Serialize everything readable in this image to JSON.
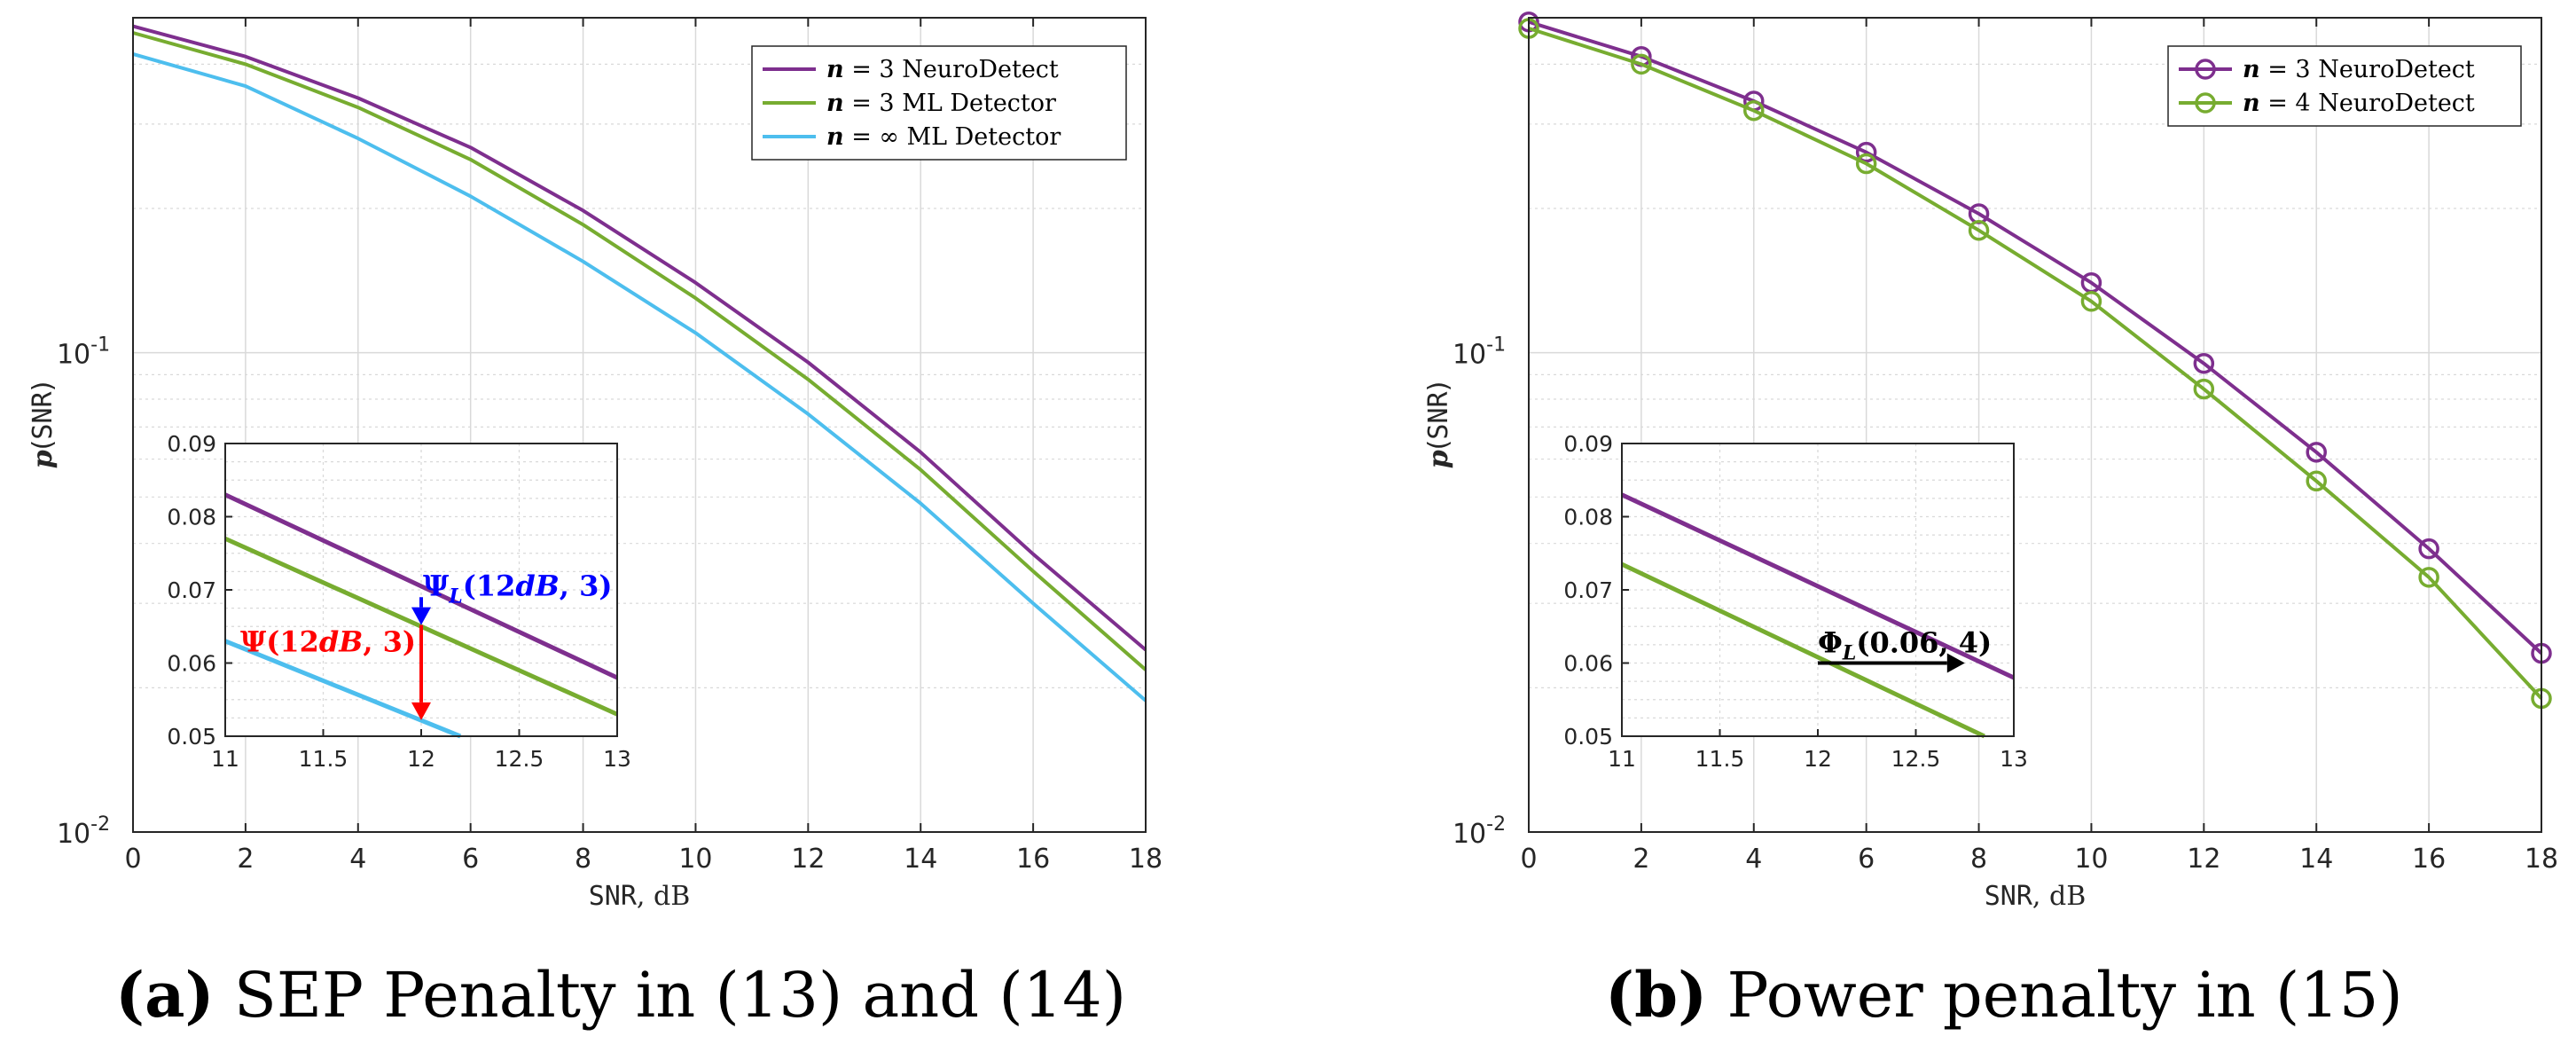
{
  "colors": {
    "purple": "#7e2f8e",
    "green": "#77ac30",
    "blue": "#4dbeee",
    "red": "#ff0000",
    "annBlue": "#0000ff",
    "black": "#000000",
    "grid": "#d9d9d9"
  },
  "captions": [
    {
      "label": "(a)",
      "text": " SEP Penalty in (13) and (14)"
    },
    {
      "label": "(b)",
      "text": " Power penalty in (15)"
    }
  ],
  "chart_data": [
    {
      "type": "line",
      "title": "",
      "xlabel_mono": "SNR",
      "xlabel_rest": ", dB",
      "ylabel_italic": "p",
      "ylabel_mono": "SNR",
      "x": [
        0,
        2,
        4,
        6,
        8,
        10,
        12,
        14,
        16,
        18
      ],
      "xlim": [
        0,
        18
      ],
      "ylim": [
        0.01,
        0.5
      ],
      "yscale": "log",
      "x_ticks": [
        "0",
        "2",
        "4",
        "6",
        "8",
        "10",
        "12",
        "14",
        "16",
        "18"
      ],
      "y_ticks": [
        {
          "base": "10",
          "exp": "-2",
          "value": 0.01
        },
        {
          "base": "10",
          "exp": "-1",
          "value": 0.1
        }
      ],
      "legend_position": "top-right",
      "series": [
        {
          "name": "n = 3 NeuroDetect",
          "n_label": "n",
          "rest": " = 3 NeuroDetect",
          "color": "#7e2f8e",
          "marker": false,
          "values": [
            0.48,
            0.415,
            0.34,
            0.268,
            0.198,
            0.14,
            0.0955,
            0.062,
            0.038,
            0.024
          ]
        },
        {
          "name": "n = 3 ML Detector",
          "n_label": "n",
          "rest": " = 3 ML Detector",
          "color": "#77ac30",
          "marker": false,
          "values": [
            0.465,
            0.4,
            0.325,
            0.253,
            0.185,
            0.13,
            0.088,
            0.057,
            0.035,
            0.0218
          ]
        },
        {
          "name": "n = ∞ ML Detector",
          "n_label": "n",
          "rest": " = ∞ ML Detector",
          "color": "#4dbeee",
          "marker": false,
          "values": [
            0.42,
            0.36,
            0.28,
            0.212,
            0.155,
            0.11,
            0.0745,
            0.0485,
            0.03,
            0.0188
          ]
        }
      ],
      "inset": {
        "xlim": [
          11,
          13
        ],
        "ylim": [
          0.05,
          0.09
        ],
        "x_ticks": [
          "11",
          "11.5",
          "12",
          "12.5",
          "13"
        ],
        "y_ticks": [
          "0.05",
          "0.06",
          "0.07",
          "0.08",
          "0.09"
        ],
        "lines": [
          {
            "color": "#7e2f8e",
            "x": [
              11,
              13
            ],
            "y": [
              0.083,
              0.058
            ]
          },
          {
            "color": "#77ac30",
            "x": [
              11,
              13
            ],
            "y": [
              0.077,
              0.053
            ]
          },
          {
            "color": "#4dbeee",
            "x": [
              11,
              12.2
            ],
            "y": [
              0.063,
              0.05
            ]
          }
        ],
        "annotations": [
          {
            "label": "Ψ_L(12dB, 3)",
            "parts": [
              "Ψ",
              "L",
              "(12",
              "dB",
              ", 3)"
            ],
            "color": "#0000ff",
            "x1": 12,
            "y1": 0.069,
            "x2": 12,
            "y2": 0.0652
          },
          {
            "label": "Ψ(12dB, 3)",
            "parts": [
              "Ψ",
              "",
              "(12",
              "dB",
              ", 3)"
            ],
            "color": "#ff0000",
            "x1": 12,
            "y1": 0.0652,
            "x2": 12,
            "y2": 0.0522
          }
        ]
      }
    },
    {
      "type": "line",
      "title": "",
      "xlabel_mono": "SNR",
      "xlabel_rest": ", dB",
      "ylabel_italic": "p",
      "ylabel_mono": "SNR",
      "x": [
        0,
        2,
        4,
        6,
        8,
        10,
        12,
        14,
        16,
        18
      ],
      "xlim": [
        0,
        18
      ],
      "ylim": [
        0.01,
        0.5
      ],
      "yscale": "log",
      "x_ticks": [
        "0",
        "2",
        "4",
        "6",
        "8",
        "10",
        "12",
        "14",
        "16",
        "18"
      ],
      "y_ticks": [
        {
          "base": "10",
          "exp": "-2",
          "value": 0.01
        },
        {
          "base": "10",
          "exp": "-1",
          "value": 0.1
        }
      ],
      "legend_position": "top-right",
      "series": [
        {
          "name": "n = 3 NeuroDetect",
          "n_label": "n",
          "rest": " = 3 NeuroDetect",
          "color": "#7e2f8e",
          "marker": true,
          "values": [
            0.49,
            0.415,
            0.335,
            0.262,
            0.195,
            0.14,
            0.095,
            0.062,
            0.039,
            0.0236
          ]
        },
        {
          "name": "n = 4 NeuroDetect",
          "n_label": "n",
          "rest": " = 4 NeuroDetect",
          "color": "#77ac30",
          "marker": true,
          "values": [
            0.475,
            0.4,
            0.32,
            0.248,
            0.18,
            0.128,
            0.084,
            0.054,
            0.034,
            0.019
          ]
        }
      ],
      "inset": {
        "xlim": [
          11,
          13
        ],
        "ylim": [
          0.05,
          0.09
        ],
        "x_ticks": [
          "11",
          "11.5",
          "12",
          "12.5",
          "13"
        ],
        "y_ticks": [
          "0.05",
          "0.06",
          "0.07",
          "0.08",
          "0.09"
        ],
        "lines": [
          {
            "color": "#7e2f8e",
            "x": [
              11,
              13
            ],
            "y": [
              0.083,
              0.058
            ]
          },
          {
            "color": "#77ac30",
            "x": [
              11,
              12.85
            ],
            "y": [
              0.0735,
              0.05
            ]
          }
        ],
        "annotations": [
          {
            "label": "Φ_L(0.06, 4)",
            "parts": [
              "Φ",
              "L",
              "(0.06, 4)",
              "",
              ""
            ],
            "color": "#000000",
            "x1": 12,
            "y1": 0.06,
            "x2": 12.75,
            "y2": 0.06
          }
        ]
      }
    }
  ]
}
